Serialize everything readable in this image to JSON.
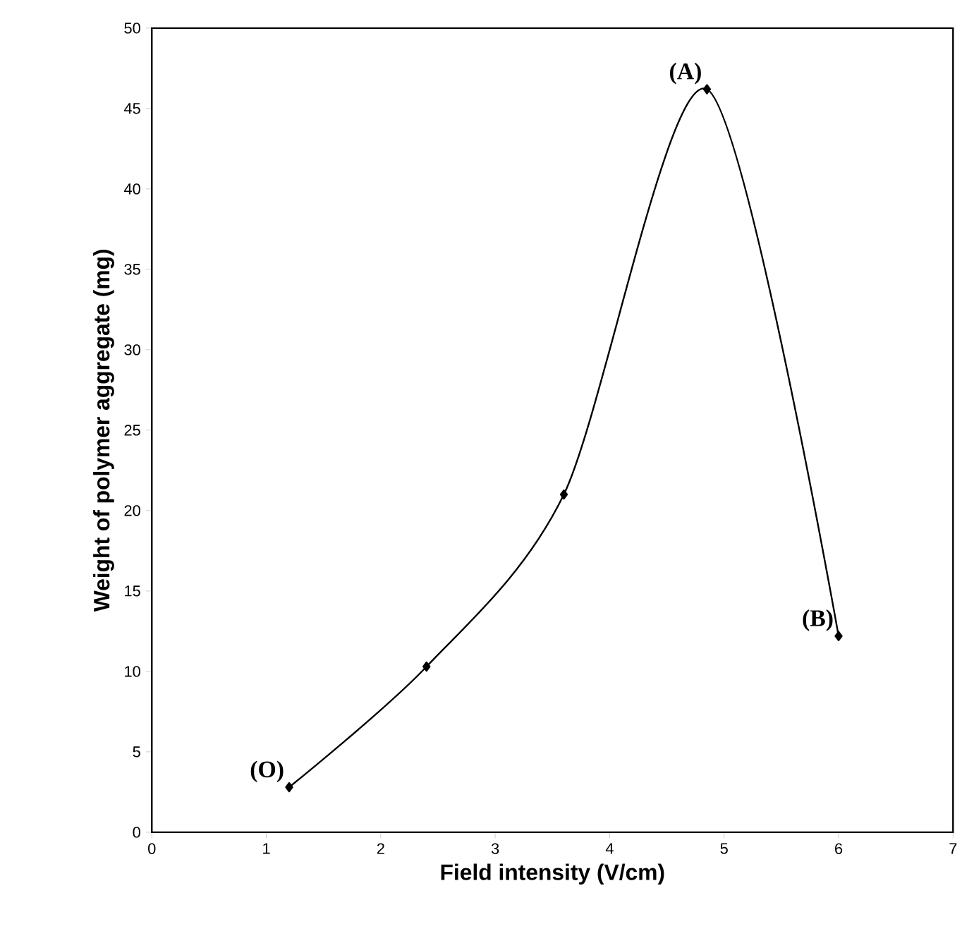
{
  "chart_data": {
    "type": "line",
    "xlabel": "Field intensity (V/cm)",
    "ylabel": "Weight of polymer aggregate (mg)",
    "x": [
      1.2,
      2.4,
      3.6,
      4.85,
      6.0
    ],
    "series": [
      {
        "color": "#000000",
        "values": [
          2.8,
          10.3,
          21.0,
          46.2,
          12.2
        ]
      }
    ],
    "marker": "diamond",
    "line_style": "solid",
    "grid": false,
    "xlim": [
      0,
      7
    ],
    "ylim": [
      0,
      50
    ],
    "xticks": [
      0,
      1,
      2,
      3,
      4,
      5,
      6,
      7
    ],
    "yticks": [
      0,
      5,
      10,
      15,
      20,
      25,
      30,
      35,
      40,
      45,
      50
    ],
    "annotations": [
      {
        "text": "(O)",
        "x": 1.2,
        "y": 2.8
      },
      {
        "text": "(A)",
        "x": 4.85,
        "y": 46.2
      },
      {
        "text": "(B)",
        "x": 6.0,
        "y": 12.2
      }
    ]
  }
}
